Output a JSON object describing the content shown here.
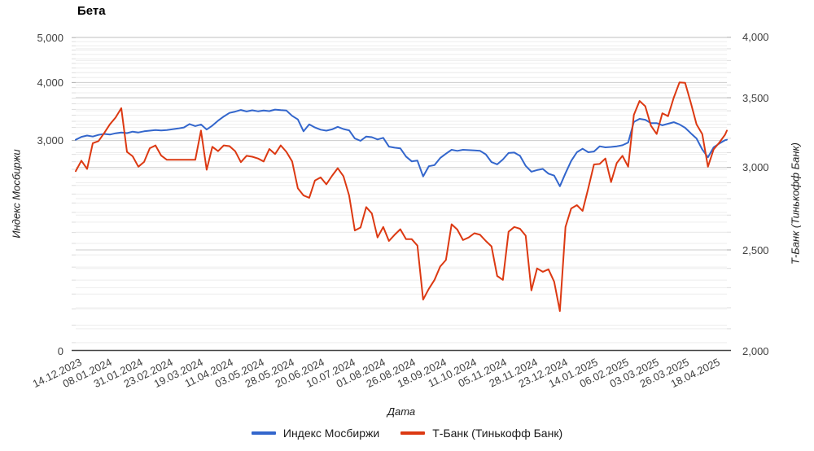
{
  "chart_data": {
    "type": "line",
    "title": "Бета",
    "xlabel": "Дата",
    "grid": "horizontal-major-and-minor",
    "legend_position": "bottom-center",
    "background_color": "#ffffff",
    "major_grid_color": "#cccccc",
    "minor_grid_color": "#ededed",
    "axis_line_color": "#444444",
    "tick_text_color": "#404040",
    "total_days": 343,
    "x_tick_labels": [
      "14.12.2023",
      "08.01.2024",
      "31.01.2024",
      "23.02.2024",
      "19.03.2024",
      "11.04.2024",
      "03.05.2024",
      "28.05.2024",
      "20.06.2024",
      "10.07.2024",
      "01.08.2024",
      "26.08.2024",
      "18.09.2024",
      "11.10.2024",
      "05.11.2024",
      "28.11.2024",
      "23.12.2024",
      "14.01.2025",
      "06.02.2025",
      "03.03.2025",
      "26.03.2025",
      "18.04.2025"
    ],
    "x_tick_day_indices": [
      0,
      16,
      32,
      48,
      64,
      80,
      96,
      112,
      128,
      144,
      160,
      176,
      192,
      208,
      224,
      240,
      256,
      272,
      288,
      304,
      320,
      336
    ],
    "y_left": {
      "label": "Индекс Мосбиржи",
      "scale": "log",
      "min": 1056,
      "max": 5023,
      "ticks": [
        {
          "label": "5,000",
          "value": 5000
        },
        {
          "label": "4,000",
          "value": 4000
        },
        {
          "label": "3,000",
          "value": 3000
        },
        {
          "label": "0",
          "value": 1056
        }
      ],
      "minor_step": 100
    },
    "y_right": {
      "label": "Т-Банк (Тинькофф Банк)",
      "scale": "log",
      "min": 2000,
      "max": 4006,
      "ticks": [
        {
          "label": "4,000",
          "value": 4000
        },
        {
          "label": "3,500",
          "value": 3500
        },
        {
          "label": "3,000",
          "value": 3000
        },
        {
          "label": "2,500",
          "value": 2500
        },
        {
          "label": "2,000",
          "value": 2000
        }
      ],
      "minor_step": 100
    },
    "days": [
      0,
      3,
      6,
      9,
      12,
      15,
      18,
      21,
      24,
      27,
      30,
      33,
      36,
      39,
      42,
      45,
      48,
      51,
      54,
      57,
      60,
      63,
      66,
      69,
      72,
      75,
      78,
      81,
      84,
      87,
      90,
      93,
      96,
      99,
      102,
      105,
      108,
      111,
      114,
      117,
      120,
      123,
      126,
      129,
      132,
      135,
      138,
      141,
      144,
      147,
      150,
      153,
      156,
      159,
      162,
      165,
      168,
      171,
      174,
      177,
      180,
      183,
      186,
      189,
      192,
      195,
      198,
      201,
      204,
      207,
      210,
      213,
      216,
      219,
      222,
      225,
      228,
      231,
      234,
      237,
      240,
      243,
      246,
      249,
      252,
      255,
      258,
      261,
      264,
      267,
      270,
      273,
      276,
      279,
      282,
      285,
      288,
      291,
      294,
      297,
      300,
      303,
      306,
      309,
      312,
      315,
      318,
      321,
      324,
      327,
      330,
      333,
      336,
      339,
      342,
      343
    ],
    "series": [
      {
        "name": "Индекс Мосбиржи",
        "color": "#3366cc",
        "axis": "left",
        "values": [
          3010,
          3055,
          3075,
          3060,
          3085,
          3100,
          3090,
          3110,
          3122,
          3112,
          3135,
          3122,
          3140,
          3150,
          3160,
          3152,
          3160,
          3172,
          3185,
          3200,
          3255,
          3222,
          3248,
          3168,
          3230,
          3310,
          3380,
          3440,
          3462,
          3490,
          3465,
          3485,
          3468,
          3480,
          3470,
          3498,
          3488,
          3480,
          3390,
          3330,
          3140,
          3250,
          3200,
          3165,
          3150,
          3170,
          3210,
          3175,
          3155,
          3030,
          2995,
          3060,
          3050,
          3015,
          3040,
          2910,
          2895,
          2885,
          2770,
          2705,
          2715,
          2510,
          2640,
          2655,
          2750,
          2810,
          2865,
          2850,
          2865,
          2860,
          2855,
          2850,
          2800,
          2695,
          2665,
          2730,
          2820,
          2825,
          2780,
          2645,
          2570,
          2590,
          2605,
          2545,
          2520,
          2390,
          2550,
          2710,
          2830,
          2880,
          2830,
          2840,
          2915,
          2900,
          2905,
          2915,
          2930,
          2970,
          3290,
          3340,
          3325,
          3270,
          3270,
          3235,
          3260,
          3285,
          3250,
          3195,
          3110,
          3030,
          2870,
          2760,
          2900,
          2955,
          3005,
          3010
        ]
      },
      {
        "name": "Т-Банк (Тинькофф Банк)",
        "color": "#dc3912",
        "axis": "right",
        "values": [
          2975,
          3045,
          2990,
          3165,
          3180,
          3237,
          3300,
          3350,
          3420,
          3105,
          3075,
          3005,
          3037,
          3130,
          3150,
          3080,
          3051,
          3051,
          3051,
          3051,
          3051,
          3051,
          3255,
          2985,
          3140,
          3110,
          3150,
          3145,
          3110,
          3035,
          3078,
          3072,
          3060,
          3040,
          3125,
          3090,
          3150,
          3105,
          3040,
          2865,
          2820,
          2805,
          2915,
          2935,
          2890,
          2945,
          2995,
          2943,
          2820,
          2610,
          2627,
          2748,
          2710,
          2570,
          2630,
          2550,
          2585,
          2617,
          2560,
          2560,
          2524,
          2240,
          2294,
          2340,
          2410,
          2445,
          2646,
          2615,
          2555,
          2570,
          2594,
          2585,
          2550,
          2520,
          2360,
          2340,
          2603,
          2630,
          2620,
          2580,
          2286,
          2400,
          2382,
          2395,
          2330,
          2184,
          2630,
          2740,
          2760,
          2725,
          2865,
          3020,
          3023,
          3060,
          2905,
          3030,
          3078,
          3005,
          3370,
          3475,
          3435,
          3290,
          3230,
          3382,
          3360,
          3500,
          3620,
          3617,
          3460,
          3300,
          3230,
          3005,
          3122,
          3170,
          3225,
          3255
        ]
      }
    ]
  },
  "legend": {
    "item1": "Индекс Мосбиржи",
    "item2": "Т-Банк (Тинькофф Банк)"
  }
}
